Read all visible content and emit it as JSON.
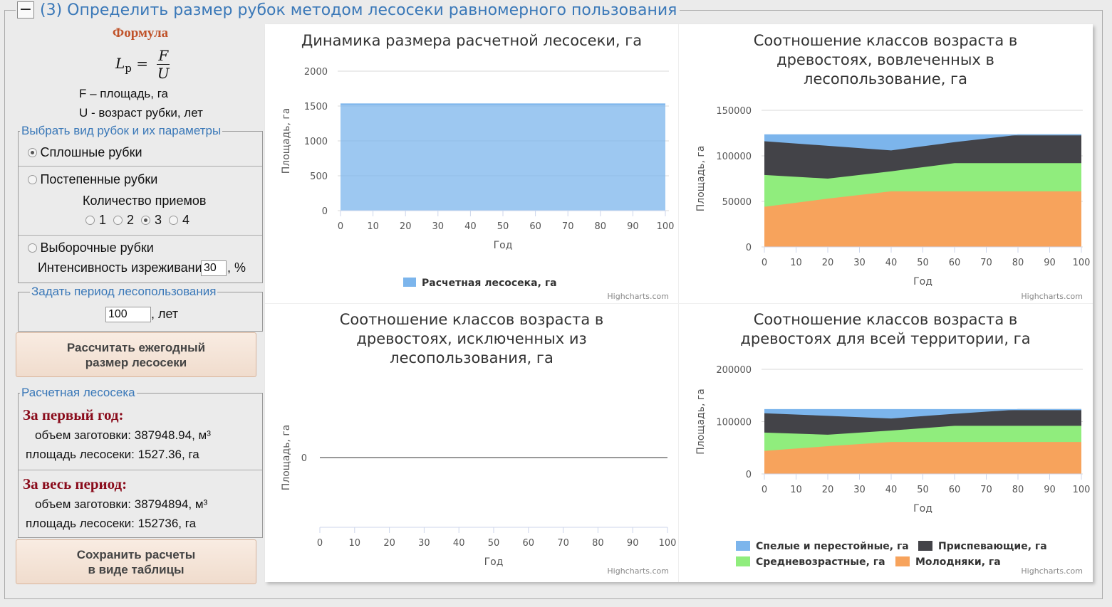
{
  "section": {
    "toggle": "−",
    "title": "(3) Определить размер рубок методом лесосеки равномерного пользования"
  },
  "formula": {
    "title": "Формула",
    "lhs": "L",
    "lhs_sub": "р",
    "numerator": "F",
    "denominator": "U",
    "def_f": "F – площадь, га",
    "def_u": "U - возраст рубки, лет"
  },
  "cut_type": {
    "legend": "Выбрать вид рубок и их параметры",
    "clear": "Сплошные рубки",
    "gradual": "Постепенные рубки",
    "count_label": "Количество приемов",
    "counts": [
      "1",
      "2",
      "3",
      "4"
    ],
    "count_selected": "3",
    "selective": "Выборочные рубки",
    "intensity_label": "Интенсивность изреживания",
    "intensity_value": "30",
    "intensity_unit": ", %",
    "selected": "clear"
  },
  "period": {
    "legend": "Задать период лесопользования",
    "value": "100",
    "unit": ", лет"
  },
  "buttons": {
    "calculate_1": "Рассчитать ежегодный",
    "calculate_2": "размер лесосеки",
    "save_1": "Сохранить расчеты",
    "save_2": "в виде таблицы"
  },
  "result": {
    "legend": "Расчетная лесосека",
    "first_year_title": "За первый год:",
    "first_year_volume": "объем заготовки: 387948.94, м³",
    "first_year_area": "площадь лесосеки: 1527.36, га",
    "period_title": "За весь период:",
    "period_volume": "объем заготовки: 38794894, м³",
    "period_area": "площадь лесосеки: 152736, га"
  },
  "credit": "Highcharts.com",
  "colors": {
    "blue": "#7cb5ec",
    "dark": "#434348",
    "green": "#90ed7d",
    "orange": "#f7a35c"
  },
  "chart_data": [
    {
      "type": "area",
      "title": "Динамика размера расчетной лесосеки, га",
      "xlabel": "Год",
      "ylabel": "Площадь, га",
      "x": [
        0,
        10,
        20,
        30,
        40,
        50,
        60,
        70,
        80,
        90,
        100
      ],
      "ylim": [
        0,
        2000
      ],
      "yticks": [
        0,
        500,
        1000,
        1500,
        2000
      ],
      "series": [
        {
          "name": "Расчетная лесосека, га",
          "color": "blue",
          "values": [
            1527.36,
            1527.36,
            1527.36,
            1527.36,
            1527.36,
            1527.36,
            1527.36,
            1527.36,
            1527.36,
            1527.36,
            1527.36
          ]
        }
      ],
      "legend": "bottom"
    },
    {
      "type": "area",
      "stacked": true,
      "title_lines": [
        "Соотношение классов возраста в",
        "древостоях, вовлеченных в",
        "лесопользование, га"
      ],
      "xlabel": "Год",
      "ylabel": "Площадь, га",
      "x": [
        0,
        20,
        40,
        60,
        80,
        100
      ],
      "xticks": [
        0,
        10,
        20,
        30,
        40,
        50,
        60,
        70,
        80,
        90,
        100
      ],
      "ylim": [
        0,
        150000
      ],
      "yticks": [
        0,
        50000,
        100000,
        150000
      ],
      "series": [
        {
          "name": "Молодняки, га",
          "color": "orange",
          "values": [
            44000,
            53000,
            61000,
            61000,
            61000,
            61000
          ]
        },
        {
          "name": "Средневозрастные, га",
          "color": "green",
          "values": [
            35000,
            22000,
            22000,
            31000,
            31000,
            31000
          ]
        },
        {
          "name": "Приспевающие, га",
          "color": "dark",
          "values": [
            37000,
            36000,
            23000,
            23000,
            31000,
            31000
          ]
        },
        {
          "name": "Спелые и перестойные, га",
          "color": "blue",
          "values": [
            7000,
            12000,
            17000,
            8000,
            0,
            0
          ]
        }
      ]
    },
    {
      "type": "area",
      "title_lines": [
        "Соотношение классов возраста в",
        "древостоях, исключенных из",
        "лесопользования, га"
      ],
      "xlabel": "Год",
      "ylabel": "Площадь, га",
      "xticks": [
        0,
        10,
        20,
        30,
        40,
        50,
        60,
        70,
        80,
        90,
        100
      ],
      "yticks": [
        0
      ],
      "series": []
    },
    {
      "type": "area",
      "stacked": true,
      "title_lines": [
        "Соотношение классов возраста в",
        "древостоях для всей территории, га"
      ],
      "xlabel": "Год",
      "ylabel": "Площадь, га",
      "x": [
        0,
        20,
        40,
        60,
        80,
        100
      ],
      "xticks": [
        0,
        10,
        20,
        30,
        40,
        50,
        60,
        70,
        80,
        90,
        100
      ],
      "ylim": [
        0,
        200000
      ],
      "yticks": [
        0,
        100000,
        200000
      ],
      "series": [
        {
          "name": "Молодняки, га",
          "color": "orange",
          "values": [
            44000,
            53000,
            61000,
            61000,
            61000,
            61000
          ]
        },
        {
          "name": "Средневозрастные, га",
          "color": "green",
          "values": [
            35000,
            22000,
            22000,
            31000,
            31000,
            31000
          ]
        },
        {
          "name": "Приспевающие, га",
          "color": "dark",
          "values": [
            37000,
            36000,
            23000,
            23000,
            31000,
            31000
          ]
        },
        {
          "name": "Спелые и перестойные, га",
          "color": "blue",
          "values": [
            7000,
            12000,
            17000,
            8000,
            0,
            0
          ]
        }
      ],
      "legend_items": [
        {
          "name": "Спелые и перестойные, га",
          "color": "blue"
        },
        {
          "name": "Приспевающие, га",
          "color": "dark"
        },
        {
          "name": "Средневозрастные, га",
          "color": "green"
        },
        {
          "name": "Молодняки, га",
          "color": "orange"
        }
      ],
      "legend": "bottom"
    }
  ]
}
